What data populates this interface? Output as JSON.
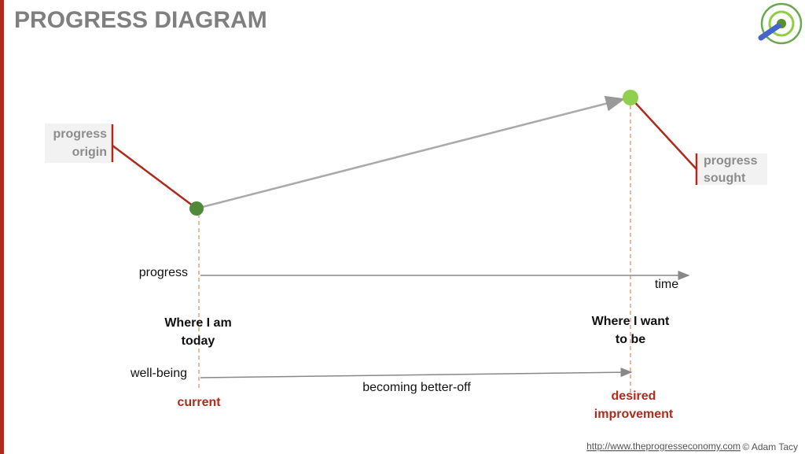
{
  "header": {
    "title": "PROGRESS DIAGRAM"
  },
  "diagram": {
    "progress_origin": [
      "progress",
      "origin"
    ],
    "progress_sought": [
      "progress",
      "sought"
    ],
    "progress_axis": {
      "label": "progress",
      "end": "time"
    },
    "current_state": [
      "Where I am",
      "today"
    ],
    "desired_state": [
      "Where I want",
      "to be"
    ],
    "wellbeing_axis": {
      "label": "well-being",
      "caption": "becoming better-off"
    },
    "current_label": "current",
    "desired_label": [
      "desired",
      "improvement"
    ]
  },
  "footer": {
    "url": "http://www.theprogresseconomy.com",
    "credit": "© Adam Tacy"
  }
}
